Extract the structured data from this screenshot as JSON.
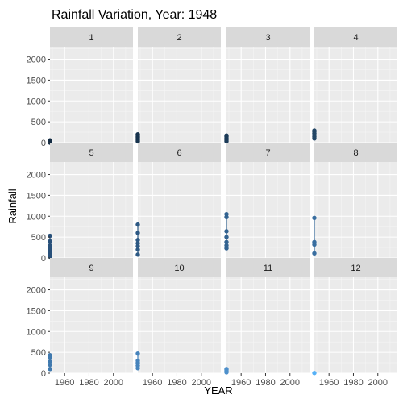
{
  "chart_data": {
    "type": "scatter",
    "title": "Rainfall Variation, Year: 1948",
    "xlabel": "YEAR",
    "ylabel": "Rainfall",
    "xlim": [
      1948,
      2016
    ],
    "ylim": [
      0,
      2300
    ],
    "x_ticks": [
      1960,
      1980,
      2000
    ],
    "y_ticks": [
      0,
      500,
      1000,
      1500,
      2000
    ],
    "grid": true,
    "legend": "none",
    "facets": [
      {
        "label": "1",
        "color": "#132B43",
        "x": 1948,
        "values": [
          0,
          10,
          20,
          30,
          40,
          50,
          55
        ]
      },
      {
        "label": "2",
        "color": "#18344E",
        "x": 1948,
        "values": [
          30,
          60,
          90,
          120,
          150,
          180,
          200
        ]
      },
      {
        "label": "3",
        "color": "#1D3C59",
        "x": 1948,
        "values": [
          30,
          60,
          100,
          140,
          170
        ]
      },
      {
        "label": "4",
        "color": "#234665",
        "x": 1948,
        "values": [
          100,
          140,
          180,
          220,
          260,
          290
        ]
      },
      {
        "label": "5",
        "color": "#28507A",
        "x": 1948,
        "values": [
          30,
          80,
          150,
          220,
          300,
          400,
          530
        ]
      },
      {
        "label": "6",
        "color": "#2D5984",
        "x": 1948,
        "values": [
          80,
          200,
          280,
          350,
          430,
          600,
          800
        ]
      },
      {
        "label": "7",
        "color": "#336391",
        "x": 1948,
        "values": [
          230,
          300,
          380,
          500,
          640,
          980,
          1050
        ]
      },
      {
        "label": "8",
        "color": "#396EA0",
        "x": 1948,
        "values": [
          110,
          320,
          380,
          960
        ]
      },
      {
        "label": "9",
        "color": "#4079AE",
        "x": 1948,
        "values": [
          100,
          200,
          280,
          380,
          430
        ]
      },
      {
        "label": "10",
        "color": "#4784BC",
        "x": 1948,
        "values": [
          120,
          180,
          250,
          300,
          470
        ]
      },
      {
        "label": "11",
        "color": "#4F90CB",
        "x": 1948,
        "values": [
          20,
          50,
          80,
          100
        ]
      },
      {
        "label": "12",
        "color": "#56B1F7",
        "x": 1948,
        "values": [
          5
        ]
      }
    ]
  }
}
